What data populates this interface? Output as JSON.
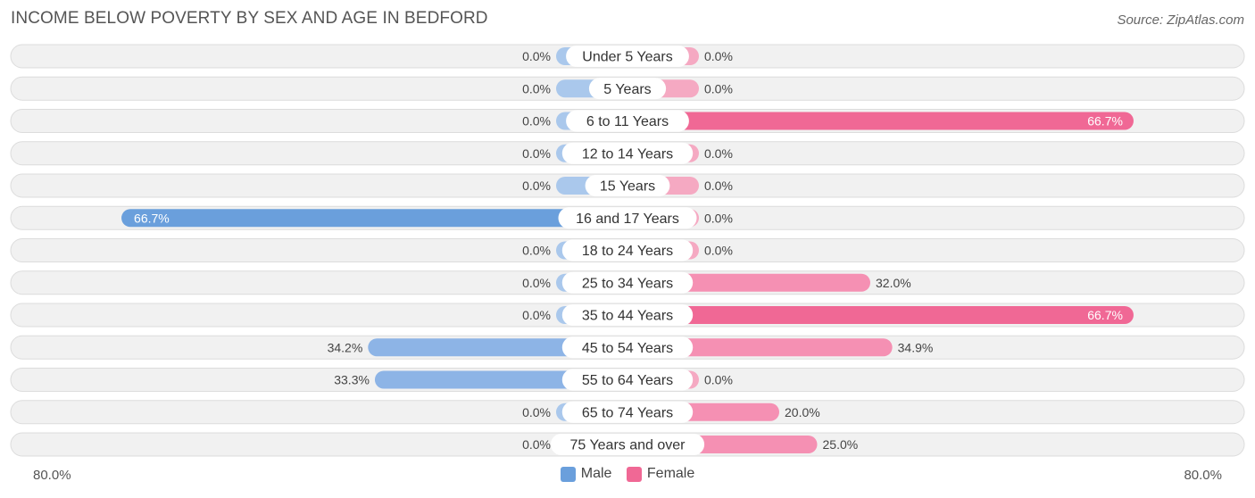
{
  "title": "INCOME BELOW POVERTY BY SEX AND AGE IN BEDFORD",
  "source": "Source: ZipAtlas.com",
  "colors": {
    "male_strong": "#6a9fdc",
    "male_light": "#aac8ec",
    "female_strong": "#f06895",
    "female_light": "#f5a9c2",
    "row_bg": "#f1f1f1",
    "row_border": "#dcdcdc"
  },
  "legend": {
    "male": "Male",
    "female": "Female"
  },
  "axis": {
    "left_label": "80.0%",
    "right_label": "80.0%"
  },
  "chart_data": {
    "type": "bar",
    "orientation": "diverging-horizontal",
    "title": "INCOME BELOW POVERTY BY SEX AND AGE IN BEDFORD",
    "xlim": [
      -80,
      80
    ],
    "categories": [
      "Under 5 Years",
      "5 Years",
      "6 to 11 Years",
      "12 to 14 Years",
      "15 Years",
      "16 and 17 Years",
      "18 to 24 Years",
      "25 to 34 Years",
      "35 to 44 Years",
      "45 to 54 Years",
      "55 to 64 Years",
      "65 to 74 Years",
      "75 Years and over"
    ],
    "series": [
      {
        "name": "Male",
        "values": [
          0.0,
          0.0,
          0.0,
          0.0,
          0.0,
          66.7,
          0.0,
          0.0,
          0.0,
          34.2,
          33.3,
          0.0,
          0.0
        ],
        "labels": [
          "0.0%",
          "0.0%",
          "0.0%",
          "0.0%",
          "0.0%",
          "66.7%",
          "0.0%",
          "0.0%",
          "0.0%",
          "34.2%",
          "33.3%",
          "0.0%",
          "0.0%"
        ]
      },
      {
        "name": "Female",
        "values": [
          0.0,
          0.0,
          66.7,
          0.0,
          0.0,
          0.0,
          0.0,
          32.0,
          66.7,
          34.9,
          0.0,
          20.0,
          25.0
        ],
        "labels": [
          "0.0%",
          "0.0%",
          "66.7%",
          "0.0%",
          "0.0%",
          "0.0%",
          "0.0%",
          "32.0%",
          "66.7%",
          "34.9%",
          "0.0%",
          "20.0%",
          "25.0%"
        ]
      }
    ]
  }
}
